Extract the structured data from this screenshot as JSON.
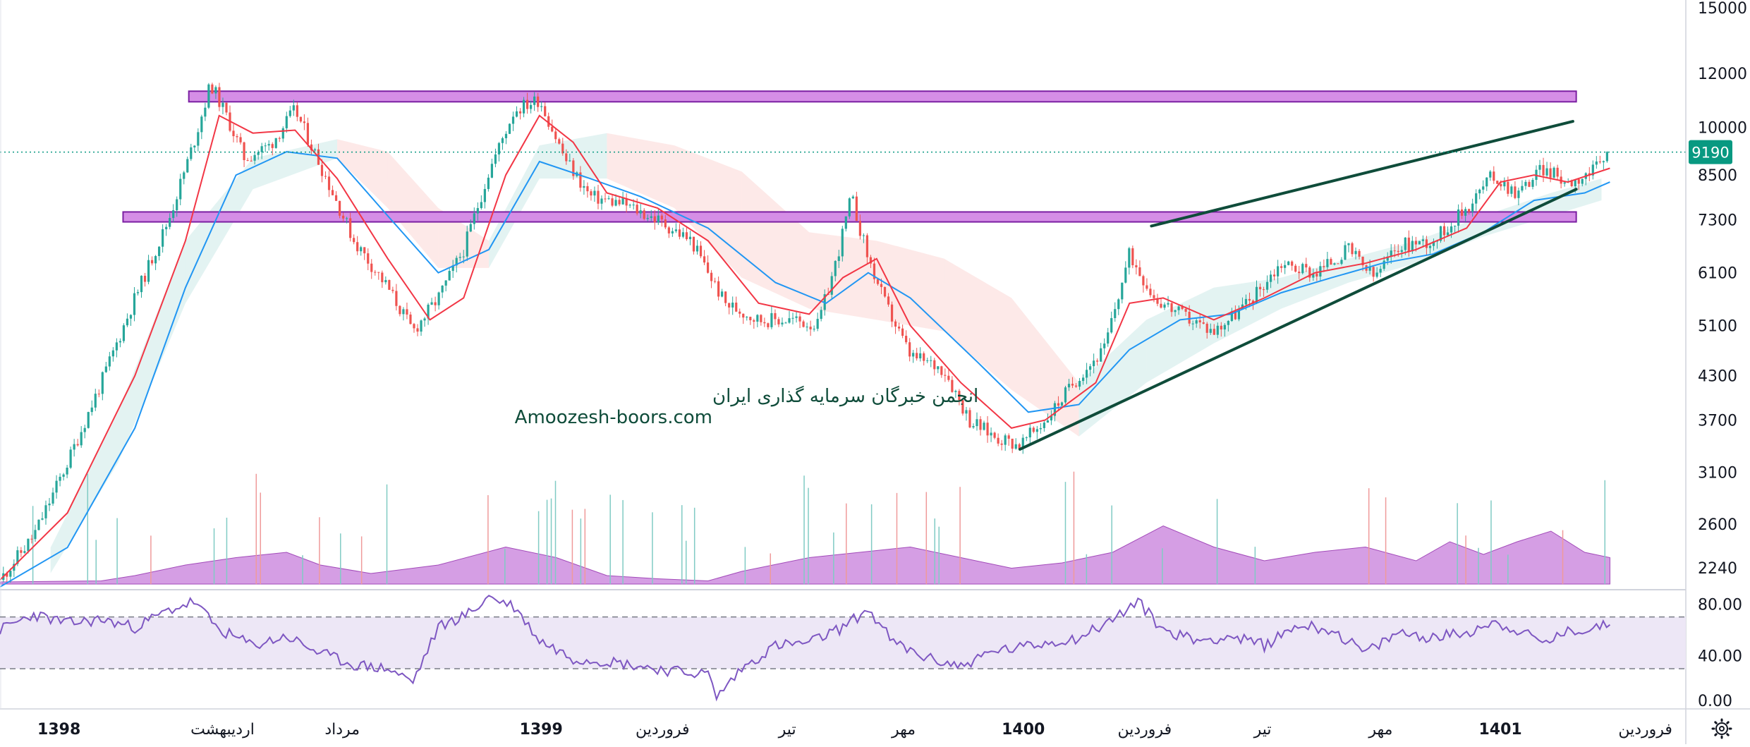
{
  "watermark": {
    "line1": "انجمن خبرگان سرمایه گذاری ایران",
    "line2": "Amoozesh-boors.com"
  },
  "price_tag": "9190",
  "settings_icon": "gear-icon",
  "colors": {
    "up": "#26a69a",
    "down": "#ef5350",
    "ema_fast": "#f23645",
    "ema_slow": "#2196f3",
    "zone_fill": "#d58ee6",
    "zone_stroke": "#7b1fa2",
    "trendline": "#0f4c3a",
    "rsi_line": "#7e57c2",
    "rsi_band": "#ede7f6",
    "volume_area": "#c77ddb",
    "price_tag_bg": "#089981"
  },
  "chart_data": {
    "type": "candlestick",
    "y_scale": "log",
    "ylim": [
      2100,
      15400
    ],
    "y_ticks": [
      15000,
      12000,
      10000,
      8500,
      7300,
      6100,
      5100,
      4300,
      3700,
      3100,
      2600,
      2240
    ],
    "y_tick_labels": [
      "15000",
      "12000",
      "10000",
      "8500",
      "7300",
      "6100",
      "5100",
      "4300",
      "3700",
      "3100",
      "2600",
      "2240"
    ],
    "x_ticks": [
      {
        "label": "1398",
        "pos": 0.035,
        "bold": true
      },
      {
        "label": "اردیبهشت",
        "pos": 0.132,
        "bold": false
      },
      {
        "label": "مرداد",
        "pos": 0.203,
        "bold": false
      },
      {
        "label": "1399",
        "pos": 0.321,
        "bold": true
      },
      {
        "label": "فروردین",
        "pos": 0.393,
        "bold": false
      },
      {
        "label": "تیر",
        "pos": 0.467,
        "bold": false
      },
      {
        "label": "مهر",
        "pos": 0.536,
        "bold": false
      },
      {
        "label": "1400",
        "pos": 0.607,
        "bold": true
      },
      {
        "label": "فروردین",
        "pos": 0.679,
        "bold": false
      },
      {
        "label": "تیر",
        "pos": 0.749,
        "bold": false
      },
      {
        "label": "مهر",
        "pos": 0.819,
        "bold": false
      },
      {
        "label": "1401",
        "pos": 0.89,
        "bold": true
      },
      {
        "label": "فروردین",
        "pos": 0.976,
        "bold": false
      }
    ],
    "last_price": 9190,
    "price_path": [
      [
        0.0,
        2150
      ],
      [
        0.02,
        2500
      ],
      [
        0.04,
        3200
      ],
      [
        0.06,
        4200
      ],
      [
        0.08,
        5600
      ],
      [
        0.1,
        7300
      ],
      [
        0.115,
        9500
      ],
      [
        0.125,
        11600
      ],
      [
        0.135,
        10300
      ],
      [
        0.145,
        9000
      ],
      [
        0.16,
        9400
      ],
      [
        0.175,
        10600
      ],
      [
        0.19,
        8800
      ],
      [
        0.21,
        6800
      ],
      [
        0.23,
        5800
      ],
      [
        0.245,
        5000
      ],
      [
        0.26,
        5600
      ],
      [
        0.275,
        6600
      ],
      [
        0.29,
        8600
      ],
      [
        0.305,
        10600
      ],
      [
        0.32,
        11000
      ],
      [
        0.335,
        9000
      ],
      [
        0.35,
        7900
      ],
      [
        0.37,
        7700
      ],
      [
        0.39,
        7300
      ],
      [
        0.41,
        6800
      ],
      [
        0.43,
        5500
      ],
      [
        0.45,
        5200
      ],
      [
        0.47,
        5200
      ],
      [
        0.485,
        5100
      ],
      [
        0.495,
        6200
      ],
      [
        0.505,
        7900
      ],
      [
        0.515,
        6400
      ],
      [
        0.525,
        5500
      ],
      [
        0.54,
        4600
      ],
      [
        0.56,
        4400
      ],
      [
        0.575,
        3700
      ],
      [
        0.59,
        3500
      ],
      [
        0.605,
        3400
      ],
      [
        0.62,
        3700
      ],
      [
        0.64,
        4300
      ],
      [
        0.655,
        4700
      ],
      [
        0.67,
        6500
      ],
      [
        0.685,
        5600
      ],
      [
        0.7,
        5300
      ],
      [
        0.72,
        5000
      ],
      [
        0.74,
        5500
      ],
      [
        0.76,
        6300
      ],
      [
        0.78,
        6100
      ],
      [
        0.8,
        6600
      ],
      [
        0.815,
        6000
      ],
      [
        0.83,
        6700
      ],
      [
        0.85,
        6800
      ],
      [
        0.87,
        7600
      ],
      [
        0.885,
        8500
      ],
      [
        0.9,
        8000
      ],
      [
        0.915,
        8700
      ],
      [
        0.93,
        8300
      ],
      [
        0.945,
        8600
      ],
      [
        0.955,
        9190
      ]
    ],
    "ema_fast": [
      [
        0.0,
        2150
      ],
      [
        0.04,
        2700
      ],
      [
        0.08,
        4300
      ],
      [
        0.11,
        6800
      ],
      [
        0.13,
        10400
      ],
      [
        0.15,
        9800
      ],
      [
        0.175,
        9900
      ],
      [
        0.2,
        8400
      ],
      [
        0.23,
        6400
      ],
      [
        0.255,
        5200
      ],
      [
        0.275,
        5600
      ],
      [
        0.3,
        8500
      ],
      [
        0.32,
        10400
      ],
      [
        0.34,
        9500
      ],
      [
        0.36,
        8000
      ],
      [
        0.39,
        7600
      ],
      [
        0.42,
        6800
      ],
      [
        0.45,
        5500
      ],
      [
        0.48,
        5300
      ],
      [
        0.5,
        6000
      ],
      [
        0.52,
        6400
      ],
      [
        0.54,
        5100
      ],
      [
        0.57,
        4200
      ],
      [
        0.6,
        3600
      ],
      [
        0.62,
        3700
      ],
      [
        0.65,
        4200
      ],
      [
        0.67,
        5500
      ],
      [
        0.69,
        5600
      ],
      [
        0.72,
        5200
      ],
      [
        0.75,
        5600
      ],
      [
        0.78,
        6100
      ],
      [
        0.81,
        6300
      ],
      [
        0.84,
        6600
      ],
      [
        0.87,
        7100
      ],
      [
        0.89,
        8300
      ],
      [
        0.91,
        8500
      ],
      [
        0.93,
        8300
      ],
      [
        0.955,
        8700
      ]
    ],
    "ema_slow": [
      [
        0.0,
        2100
      ],
      [
        0.04,
        2400
      ],
      [
        0.08,
        3600
      ],
      [
        0.11,
        5800
      ],
      [
        0.14,
        8500
      ],
      [
        0.17,
        9200
      ],
      [
        0.2,
        9000
      ],
      [
        0.23,
        7400
      ],
      [
        0.26,
        6100
      ],
      [
        0.29,
        6600
      ],
      [
        0.32,
        8900
      ],
      [
        0.35,
        8400
      ],
      [
        0.38,
        7900
      ],
      [
        0.42,
        7100
      ],
      [
        0.46,
        5900
      ],
      [
        0.49,
        5500
      ],
      [
        0.515,
        6100
      ],
      [
        0.54,
        5600
      ],
      [
        0.58,
        4500
      ],
      [
        0.61,
        3800
      ],
      [
        0.64,
        3900
      ],
      [
        0.67,
        4700
      ],
      [
        0.7,
        5200
      ],
      [
        0.73,
        5300
      ],
      [
        0.76,
        5700
      ],
      [
        0.79,
        6000
      ],
      [
        0.82,
        6300
      ],
      [
        0.85,
        6500
      ],
      [
        0.88,
        7000
      ],
      [
        0.91,
        7800
      ],
      [
        0.94,
        8000
      ],
      [
        0.955,
        8300
      ]
    ],
    "resistance_zones": [
      {
        "x0": 0.112,
        "x1": 0.935,
        "y_low": 10900,
        "y_high": 11300
      },
      {
        "x0": 0.073,
        "x1": 0.935,
        "y_low": 7250,
        "y_high": 7500
      }
    ],
    "trendlines": [
      {
        "x0": 0.683,
        "y0": 7150,
        "x1": 0.933,
        "y1": 10200
      },
      {
        "x0": 0.605,
        "y0": 3350,
        "x1": 0.935,
        "y1": 8100
      }
    ],
    "cloud_path": [
      [
        0.03,
        2200,
        2400
      ],
      [
        0.07,
        3200,
        3800
      ],
      [
        0.11,
        5500,
        6800
      ],
      [
        0.15,
        8100,
        9000
      ],
      [
        0.2,
        9000,
        9600
      ],
      [
        0.23,
        7600,
        9200
      ],
      [
        0.26,
        6200,
        7600
      ],
      [
        0.29,
        6200,
        6800
      ],
      [
        0.32,
        8400,
        9400
      ],
      [
        0.36,
        8400,
        9800
      ],
      [
        0.4,
        7600,
        9400
      ],
      [
        0.44,
        6000,
        8600
      ],
      [
        0.48,
        5400,
        7000
      ],
      [
        0.52,
        5200,
        6800
      ],
      [
        0.56,
        5000,
        6400
      ],
      [
        0.6,
        4100,
        5600
      ],
      [
        0.64,
        3500,
        4200
      ],
      [
        0.68,
        4200,
        5200
      ],
      [
        0.72,
        4800,
        5800
      ],
      [
        0.76,
        5400,
        6000
      ],
      [
        0.8,
        5900,
        6400
      ],
      [
        0.84,
        6300,
        6800
      ],
      [
        0.88,
        6900,
        7400
      ],
      [
        0.92,
        7400,
        8000
      ],
      [
        0.95,
        7800,
        8400
      ]
    ],
    "volume_profile": [
      [
        0.0,
        0.02
      ],
      [
        0.06,
        0.03
      ],
      [
        0.08,
        0.08
      ],
      [
        0.11,
        0.18
      ],
      [
        0.14,
        0.25
      ],
      [
        0.17,
        0.3
      ],
      [
        0.19,
        0.18
      ],
      [
        0.22,
        0.1
      ],
      [
        0.26,
        0.18
      ],
      [
        0.3,
        0.35
      ],
      [
        0.33,
        0.25
      ],
      [
        0.36,
        0.08
      ],
      [
        0.39,
        0.05
      ],
      [
        0.42,
        0.03
      ],
      [
        0.44,
        0.12
      ],
      [
        0.48,
        0.25
      ],
      [
        0.51,
        0.3
      ],
      [
        0.54,
        0.35
      ],
      [
        0.57,
        0.25
      ],
      [
        0.6,
        0.15
      ],
      [
        0.63,
        0.2
      ],
      [
        0.66,
        0.3
      ],
      [
        0.69,
        0.55
      ],
      [
        0.72,
        0.35
      ],
      [
        0.75,
        0.22
      ],
      [
        0.78,
        0.3
      ],
      [
        0.81,
        0.35
      ],
      [
        0.84,
        0.22
      ],
      [
        0.86,
        0.4
      ],
      [
        0.88,
        0.28
      ],
      [
        0.9,
        0.4
      ],
      [
        0.92,
        0.5
      ],
      [
        0.94,
        0.3
      ],
      [
        0.955,
        0.25
      ]
    ],
    "rsi": {
      "y_ticks": [
        80,
        40,
        0
      ],
      "y_tick_labels": [
        "80.00",
        "40.00",
        "0.00"
      ],
      "upper_band": 70,
      "lower_band": 30,
      "ylim": [
        0,
        90
      ],
      "series": [
        [
          0.0,
          60
        ],
        [
          0.02,
          72
        ],
        [
          0.04,
          65
        ],
        [
          0.06,
          68
        ],
        [
          0.08,
          62
        ],
        [
          0.1,
          75
        ],
        [
          0.115,
          82
        ],
        [
          0.13,
          60
        ],
        [
          0.15,
          48
        ],
        [
          0.17,
          55
        ],
        [
          0.19,
          42
        ],
        [
          0.21,
          33
        ],
        [
          0.23,
          30
        ],
        [
          0.245,
          20
        ],
        [
          0.26,
          62
        ],
        [
          0.28,
          74
        ],
        [
          0.29,
          86
        ],
        [
          0.305,
          78
        ],
        [
          0.32,
          52
        ],
        [
          0.34,
          38
        ],
        [
          0.36,
          36
        ],
        [
          0.38,
          32
        ],
        [
          0.4,
          28
        ],
        [
          0.42,
          26
        ],
        [
          0.425,
          8
        ],
        [
          0.44,
          30
        ],
        [
          0.46,
          48
        ],
        [
          0.48,
          50
        ],
        [
          0.5,
          62
        ],
        [
          0.515,
          76
        ],
        [
          0.53,
          50
        ],
        [
          0.55,
          38
        ],
        [
          0.57,
          32
        ],
        [
          0.59,
          44
        ],
        [
          0.605,
          46
        ],
        [
          0.62,
          50
        ],
        [
          0.64,
          54
        ],
        [
          0.66,
          68
        ],
        [
          0.675,
          82
        ],
        [
          0.69,
          60
        ],
        [
          0.71,
          52
        ],
        [
          0.73,
          55
        ],
        [
          0.75,
          48
        ],
        [
          0.77,
          64
        ],
        [
          0.79,
          60
        ],
        [
          0.81,
          42
        ],
        [
          0.83,
          58
        ],
        [
          0.85,
          54
        ],
        [
          0.87,
          58
        ],
        [
          0.885,
          66
        ],
        [
          0.9,
          60
        ],
        [
          0.915,
          50
        ],
        [
          0.93,
          58
        ],
        [
          0.945,
          62
        ],
        [
          0.955,
          64
        ]
      ]
    }
  }
}
